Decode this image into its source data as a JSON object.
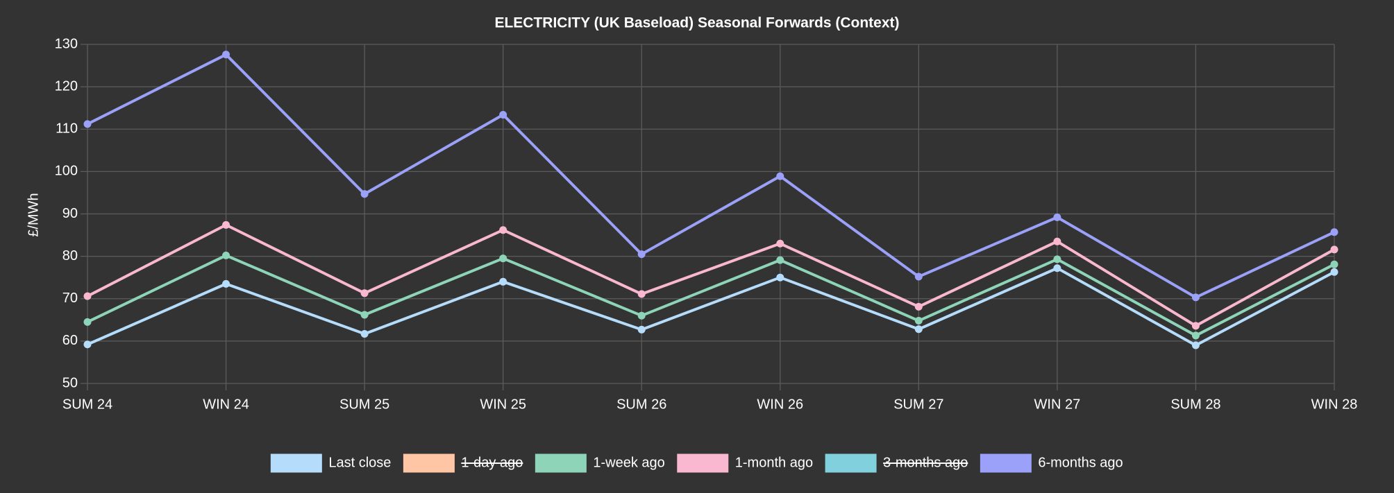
{
  "chart_data": {
    "type": "line",
    "title": "ELECTRICITY (UK Baseload) Seasonal Forwards (Context)",
    "y_label": "£/MWh",
    "categories": [
      "SUM 24",
      "WIN 24",
      "SUM 25",
      "WIN 25",
      "SUM 26",
      "WIN 26",
      "SUM 27",
      "WIN 27",
      "SUM 28",
      "WIN 28"
    ],
    "series": [
      {
        "name": "Last close",
        "color": "#b5dcfa",
        "values": [
          59.2,
          73.5,
          61.7,
          74.0,
          62.7,
          75.0,
          62.8,
          77.2,
          59.0,
          76.3
        ]
      },
      {
        "name": "1-day ago",
        "color": "#ffc6a5",
        "hidden": true
      },
      {
        "name": "1-week ago",
        "color": "#8dd4b9",
        "values": [
          64.5,
          80.2,
          66.2,
          79.5,
          66.0,
          79.1,
          64.8,
          79.3,
          61.3,
          78.1
        ]
      },
      {
        "name": "1-month ago",
        "color": "#f9b8cf",
        "values": [
          70.6,
          87.4,
          71.3,
          86.2,
          71.1,
          83.0,
          68.1,
          83.5,
          63.6,
          81.6
        ]
      },
      {
        "name": "3-months ago",
        "color": "#80d1dd",
        "hidden": true
      },
      {
        "name": "6-months ago",
        "color": "#9ba0f8",
        "values": [
          111.2,
          127.6,
          94.7,
          113.4,
          80.5,
          98.9,
          75.2,
          89.2,
          70.3,
          85.7
        ]
      }
    ],
    "ylim": [
      50,
      130
    ],
    "yticks": [
      50,
      60,
      70,
      80,
      90,
      100,
      110,
      120,
      130
    ],
    "grid": true,
    "legend": "bottom"
  }
}
